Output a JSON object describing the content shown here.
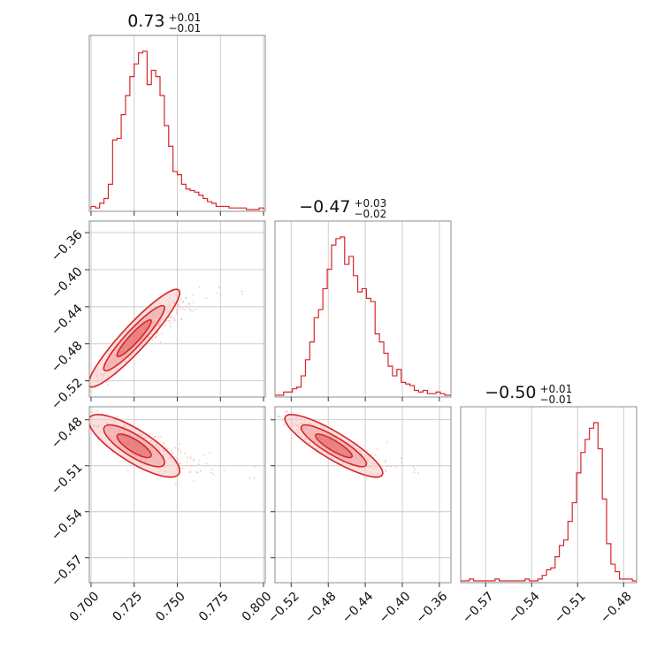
{
  "figure": {
    "colors": {
      "accent": "#d62728",
      "fill": "#ef9a9a",
      "fill_light": "#f8c6c6",
      "scatter": "#f3b2b2"
    }
  },
  "chart_data": {
    "type": "corner",
    "parameters": [
      {
        "median": "0.73",
        "upper": "+0.01",
        "lower": "−0.01",
        "ticks": [
          0.7,
          0.725,
          0.75,
          0.775,
          0.8
        ],
        "tick_labels": [
          "0.700",
          "0.725",
          "0.750",
          "0.775",
          "0.800"
        ],
        "range": [
          0.699,
          0.801
        ]
      },
      {
        "median": "−0.47",
        "upper": "+0.03",
        "lower": "−0.02",
        "ticks": [
          -0.52,
          -0.48,
          -0.44,
          -0.4,
          -0.36
        ],
        "tick_labels": [
          "−0.52",
          "−0.48",
          "−0.44",
          "−0.40",
          "−0.36"
        ],
        "range": [
          -0.5375,
          -0.3475
        ]
      },
      {
        "median": "−0.50",
        "upper": "+0.01",
        "lower": "−0.01",
        "ticks": [
          -0.57,
          -0.54,
          -0.51,
          -0.48
        ],
        "tick_labels": [
          "−0.57",
          "−0.54",
          "−0.51",
          "−0.48"
        ],
        "range": [
          -0.5863,
          -0.4715
        ]
      }
    ],
    "histograms": [
      {
        "bin_start": 0.7,
        "bin_width": 0.0025,
        "counts": [
          2,
          1,
          4,
          7,
          16,
          44,
          45,
          60,
          72,
          84,
          92,
          99,
          100,
          79,
          88,
          84,
          72,
          53,
          40,
          24,
          22,
          16,
          13,
          12,
          11,
          9,
          7,
          5,
          4,
          2,
          2,
          2,
          1,
          1,
          1,
          1,
          0,
          0,
          0,
          1
        ]
      },
      {
        "bin_start": -0.5375,
        "bin_width": 0.0047,
        "counts": [
          0,
          0,
          2,
          2,
          4,
          5,
          12,
          22,
          33,
          48,
          53,
          66,
          78,
          93,
          97,
          98,
          81,
          86,
          74,
          64,
          66,
          60,
          58,
          38,
          33,
          26,
          18,
          12,
          16,
          8,
          7,
          6,
          3,
          2,
          3,
          1,
          1,
          2,
          1,
          0,
          0
        ]
      },
      {
        "bin_start": -0.5863,
        "bin_width": 0.0028,
        "counts": [
          0,
          0,
          1,
          0,
          0,
          0,
          0,
          0,
          1,
          0,
          0,
          0,
          0,
          0,
          0,
          1,
          0,
          0,
          1,
          3,
          6,
          7,
          13,
          19,
          22,
          32,
          42,
          58,
          69,
          76,
          82,
          85,
          71,
          44,
          20,
          9,
          5,
          1,
          1,
          1,
          0
        ]
      }
    ],
    "scatter_panels": [
      {
        "x_param": 0,
        "y_param": 1,
        "correlation": 0.93
      },
      {
        "x_param": 0,
        "y_param": 2,
        "correlation": -0.8
      },
      {
        "x_param": 1,
        "y_param": 2,
        "correlation": -0.87
      }
    ]
  }
}
